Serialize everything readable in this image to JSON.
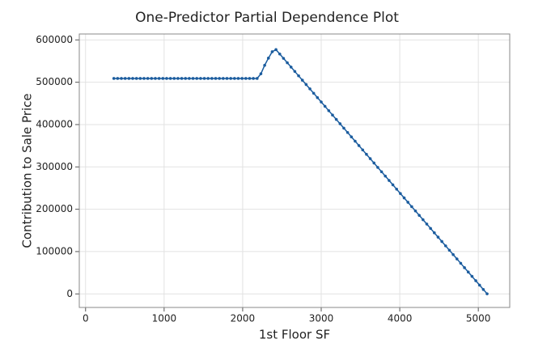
{
  "chart_data": {
    "type": "line",
    "title": "One-Predictor Partial Dependence Plot",
    "x_label": "1st Floor SF",
    "y_label": "Contribution to Sale Price",
    "x": [
      360,
      408,
      456,
      504,
      552,
      600,
      648,
      696,
      744,
      792,
      840,
      888,
      936,
      984,
      1032,
      1080,
      1128,
      1176,
      1224,
      1272,
      1320,
      1368,
      1416,
      1464,
      1512,
      1560,
      1608,
      1656,
      1704,
      1752,
      1800,
      1848,
      1896,
      1944,
      1992,
      2040,
      2088,
      2136,
      2184,
      2232,
      2280,
      2328,
      2376,
      2424,
      2472,
      2520,
      2568,
      2616,
      2664,
      2712,
      2760,
      2808,
      2856,
      2904,
      2952,
      3000,
      3048,
      3096,
      3144,
      3192,
      3240,
      3288,
      3336,
      3384,
      3432,
      3480,
      3528,
      3576,
      3624,
      3672,
      3720,
      3768,
      3816,
      3864,
      3912,
      3960,
      4008,
      4056,
      4104,
      4152,
      4200,
      4248,
      4296,
      4344,
      4392,
      4440,
      4488,
      4536,
      4584,
      4632,
      4680,
      4728,
      4776,
      4824,
      4872,
      4920,
      4968,
      5016,
      5064,
      5112
    ],
    "series": [
      {
        "color": "#1b5c9e",
        "values": [
          509000,
          509000,
          509000,
          509000,
          509000,
          509000,
          509000,
          509000,
          509000,
          509000,
          509000,
          509000,
          509000,
          509000,
          509000,
          509000,
          509000,
          509000,
          509000,
          509000,
          509000,
          509000,
          509000,
          509000,
          509000,
          509000,
          509000,
          509000,
          509000,
          509000,
          509000,
          509000,
          509000,
          509000,
          509000,
          509000,
          509000,
          509000,
          509000,
          520000,
          540000,
          557000,
          572000,
          577000,
          566700,
          556400,
          546100,
          535800,
          525500,
          515200,
          504900,
          494600,
          484300,
          474000,
          463700,
          453400,
          443100,
          432800,
          422500,
          412200,
          401900,
          391600,
          381300,
          371000,
          360700,
          350400,
          340100,
          329800,
          319500,
          309200,
          298900,
          288600,
          278300,
          268000,
          257700,
          247400,
          237100,
          226800,
          216500,
          206200,
          195900,
          185600,
          175300,
          165000,
          154700,
          144400,
          134100,
          123800,
          113500,
          103200,
          92900,
          82600,
          72300,
          62000,
          51700,
          41400,
          31100,
          20800,
          10500,
          200
        ]
      }
    ],
    "xlim": [
      -80,
      5400
    ],
    "xticks": [
      0,
      1000,
      2000,
      3000,
      4000,
      5000
    ],
    "ylim": [
      -32000,
      614000
    ],
    "yticks": [
      0,
      100000,
      200000,
      300000,
      400000,
      500000,
      600000
    ],
    "grid": true
  }
}
